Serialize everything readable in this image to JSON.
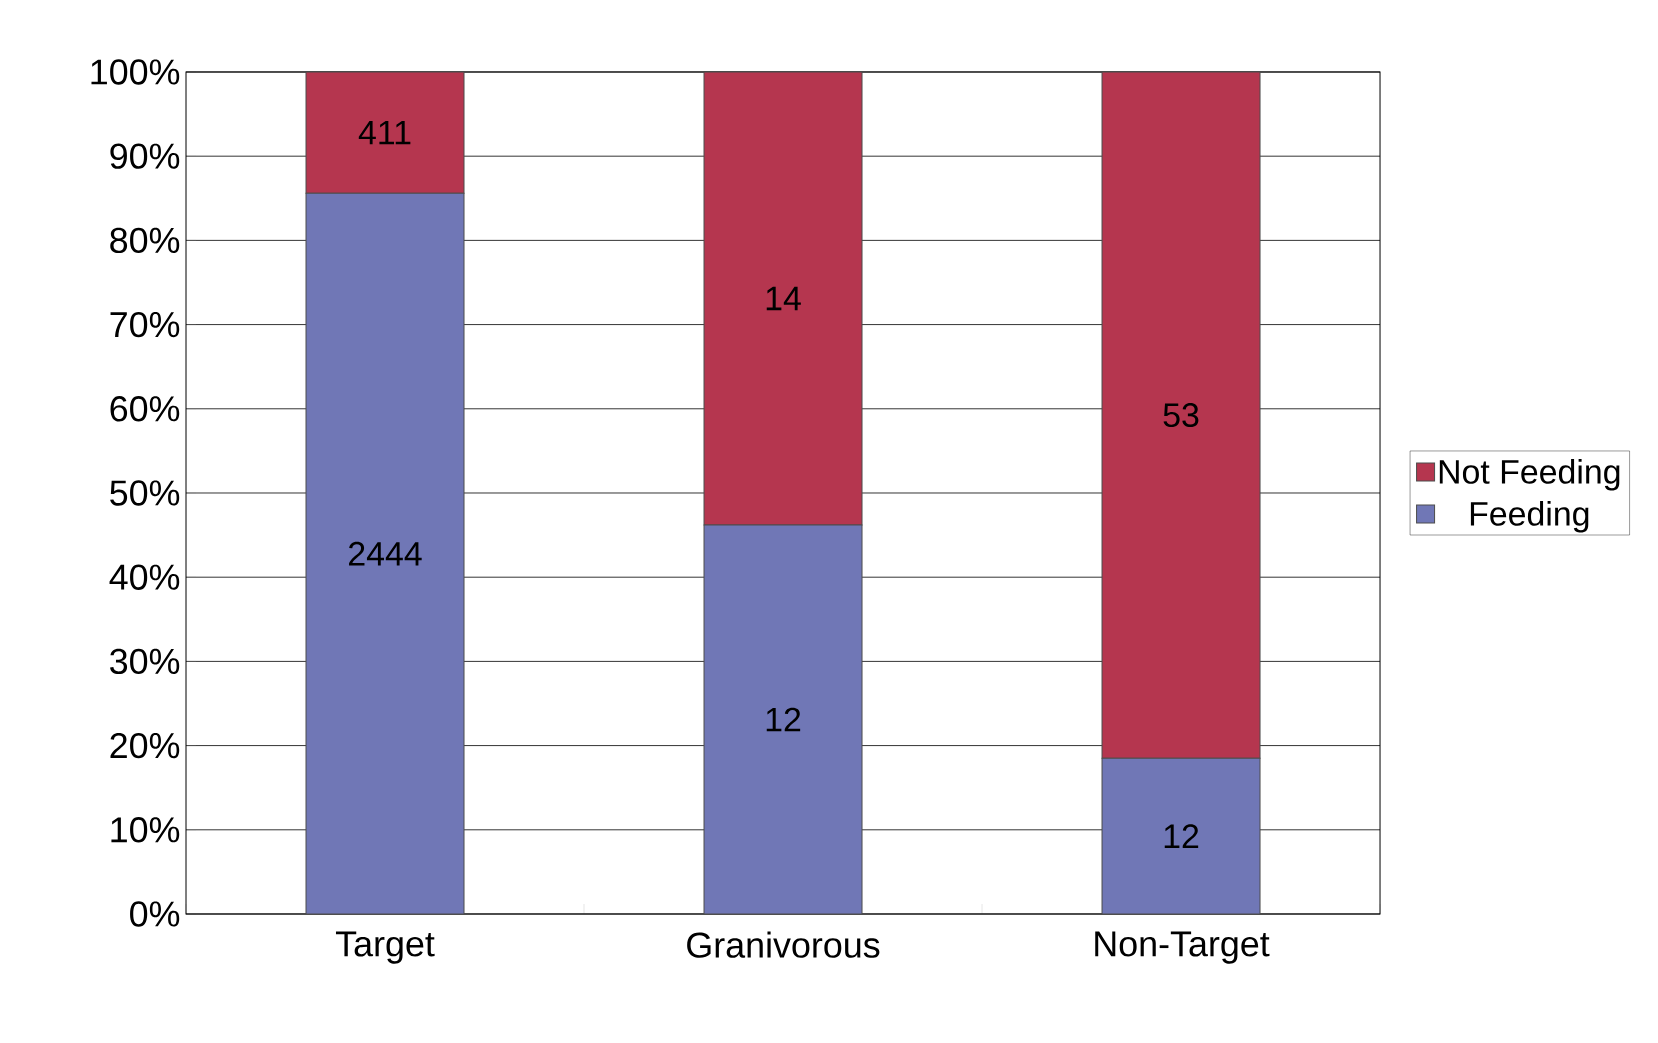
{
  "chart_data": {
    "type": "bar",
    "stacked": true,
    "categories": [
      "Target",
      "Granivorous",
      "Non-Target"
    ],
    "series": [
      {
        "name": "Feeding",
        "color": "#7077b6",
        "values": [
          85.6,
          46.2,
          18.5
        ]
      },
      {
        "name": "Not Feeding",
        "color": "#b5364f",
        "values": [
          14.4,
          53.8,
          81.5
        ]
      }
    ],
    "annotations": [
      "2444",
      "12",
      "12",
      "411",
      "14",
      "53"
    ],
    "ylim": [
      0,
      100
    ],
    "yticks": [
      {
        "value": 0,
        "label": "0%"
      },
      {
        "value": 10,
        "label": "10%"
      },
      {
        "value": 20,
        "label": "20%"
      },
      {
        "value": 30,
        "label": "30%"
      },
      {
        "value": 40,
        "label": "40%"
      },
      {
        "value": 50,
        "label": "50%"
      },
      {
        "value": 60,
        "label": "60%"
      },
      {
        "value": 70,
        "label": "70%"
      },
      {
        "value": 80,
        "label": "80%"
      },
      {
        "value": 90,
        "label": "90%"
      },
      {
        "value": 100,
        "label": "100%"
      }
    ],
    "grid": "y",
    "legend": "right"
  }
}
